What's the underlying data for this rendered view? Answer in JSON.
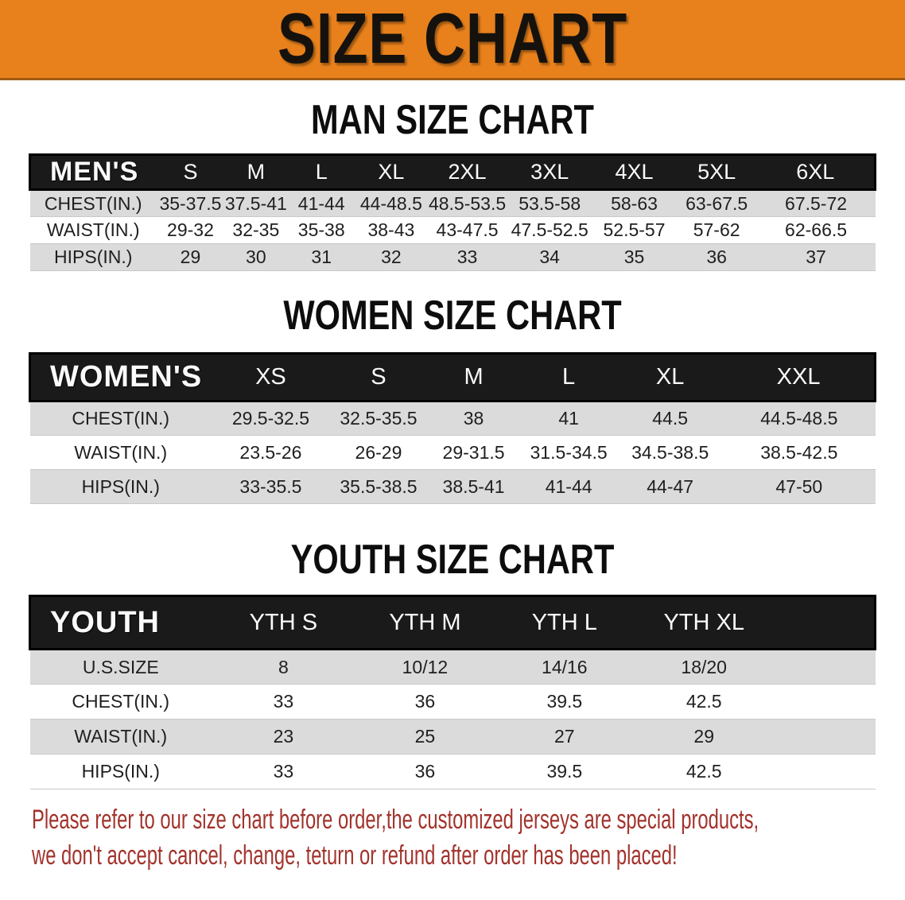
{
  "banner": {
    "title": "SIZE CHART"
  },
  "sections": [
    {
      "heading": "MAN SIZE CHART",
      "table": {
        "corner_label": "MEN'S",
        "sizes": [
          "S",
          "M",
          "L",
          "XL",
          "2XL",
          "3XL",
          "4XL",
          "5XL",
          "6XL"
        ],
        "rows": [
          {
            "label": "CHEST(IN.)",
            "values": [
              "35-37.5",
              "37.5-41",
              "41-44",
              "44-48.5",
              "48.5-53.5",
              "53.5-58",
              "58-63",
              "63-67.5",
              "67.5-72"
            ]
          },
          {
            "label": "WAIST(IN.)",
            "values": [
              "29-32",
              "32-35",
              "35-38",
              "38-43",
              "43-47.5",
              "47.5-52.5",
              "52.5-57",
              "57-62",
              "62-66.5"
            ]
          },
          {
            "label": "HIPS(IN.)",
            "values": [
              "29",
              "30",
              "31",
              "32",
              "33",
              "34",
              "35",
              "36",
              "37"
            ]
          }
        ]
      }
    },
    {
      "heading": "WOMEN SIZE CHART",
      "table": {
        "corner_label": "WOMEN'S",
        "sizes": [
          "XS",
          "S",
          "M",
          "L",
          "XL",
          "XXL"
        ],
        "rows": [
          {
            "label": "CHEST(IN.)",
            "values": [
              "29.5-32.5",
              "32.5-35.5",
              "38",
              "41",
              "44.5",
              "44.5-48.5"
            ]
          },
          {
            "label": "WAIST(IN.)",
            "values": [
              "23.5-26",
              "26-29",
              "29-31.5",
              "31.5-34.5",
              "34.5-38.5",
              "38.5-42.5"
            ]
          },
          {
            "label": "HIPS(IN.)",
            "values": [
              "33-35.5",
              "35.5-38.5",
              "38.5-41",
              "41-44",
              "44-47",
              "47-50"
            ]
          }
        ]
      }
    },
    {
      "heading": "YOUTH SIZE CHART",
      "table": {
        "corner_label": "YOUTH",
        "sizes": [
          "YTH S",
          "YTH M",
          "YTH L",
          "YTH XL"
        ],
        "rows": [
          {
            "label": "U.S.SIZE",
            "values": [
              "8",
              "10/12",
              "14/16",
              "18/20"
            ]
          },
          {
            "label": "CHEST(IN.)",
            "values": [
              "33",
              "36",
              "39.5",
              "42.5"
            ]
          },
          {
            "label": "WAIST(IN.)",
            "values": [
              "23",
              "25",
              "27",
              "29"
            ]
          },
          {
            "label": "HIPS(IN.)",
            "values": [
              "33",
              "36",
              "39.5",
              "42.5"
            ]
          }
        ]
      }
    }
  ],
  "footer": {
    "line1": "Please refer to our size chart before order,the customized jerseys are special products,",
    "line2": "we don't accept cancel, change, teturn or refund after order has been placed!",
    "text_color": "#A2332C"
  },
  "colors": {
    "banner_bg": "#E8811C",
    "header_band_bg": "#1A1A1A",
    "header_band_text": "#FFFFFF",
    "stripe_gray": "#DBDBDB",
    "heading_text": "#0D0D0D"
  }
}
